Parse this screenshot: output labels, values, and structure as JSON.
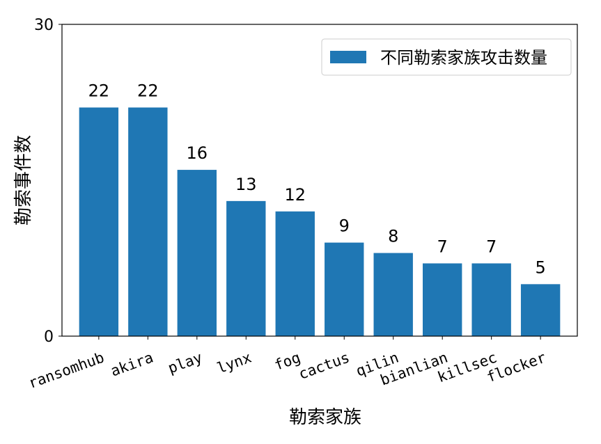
{
  "chart_data": {
    "type": "bar",
    "categories": [
      "ransomhub",
      "akira",
      "play",
      "lynx",
      "fog",
      "cactus",
      "qilin",
      "bianlian",
      "killsec",
      "flocker"
    ],
    "series": [
      {
        "name": "不同勒索家族攻击数量",
        "values": [
          22,
          22,
          16,
          13,
          12,
          9,
          8,
          7,
          7,
          5
        ],
        "color": "#1f77b4"
      }
    ],
    "xlabel": "勒索家族",
    "ylabel": "勒索事件数",
    "ylim": [
      0,
      30
    ],
    "yticks": [
      0,
      30
    ],
    "grid": false,
    "legend_position": "top-right",
    "data_labels": true
  }
}
